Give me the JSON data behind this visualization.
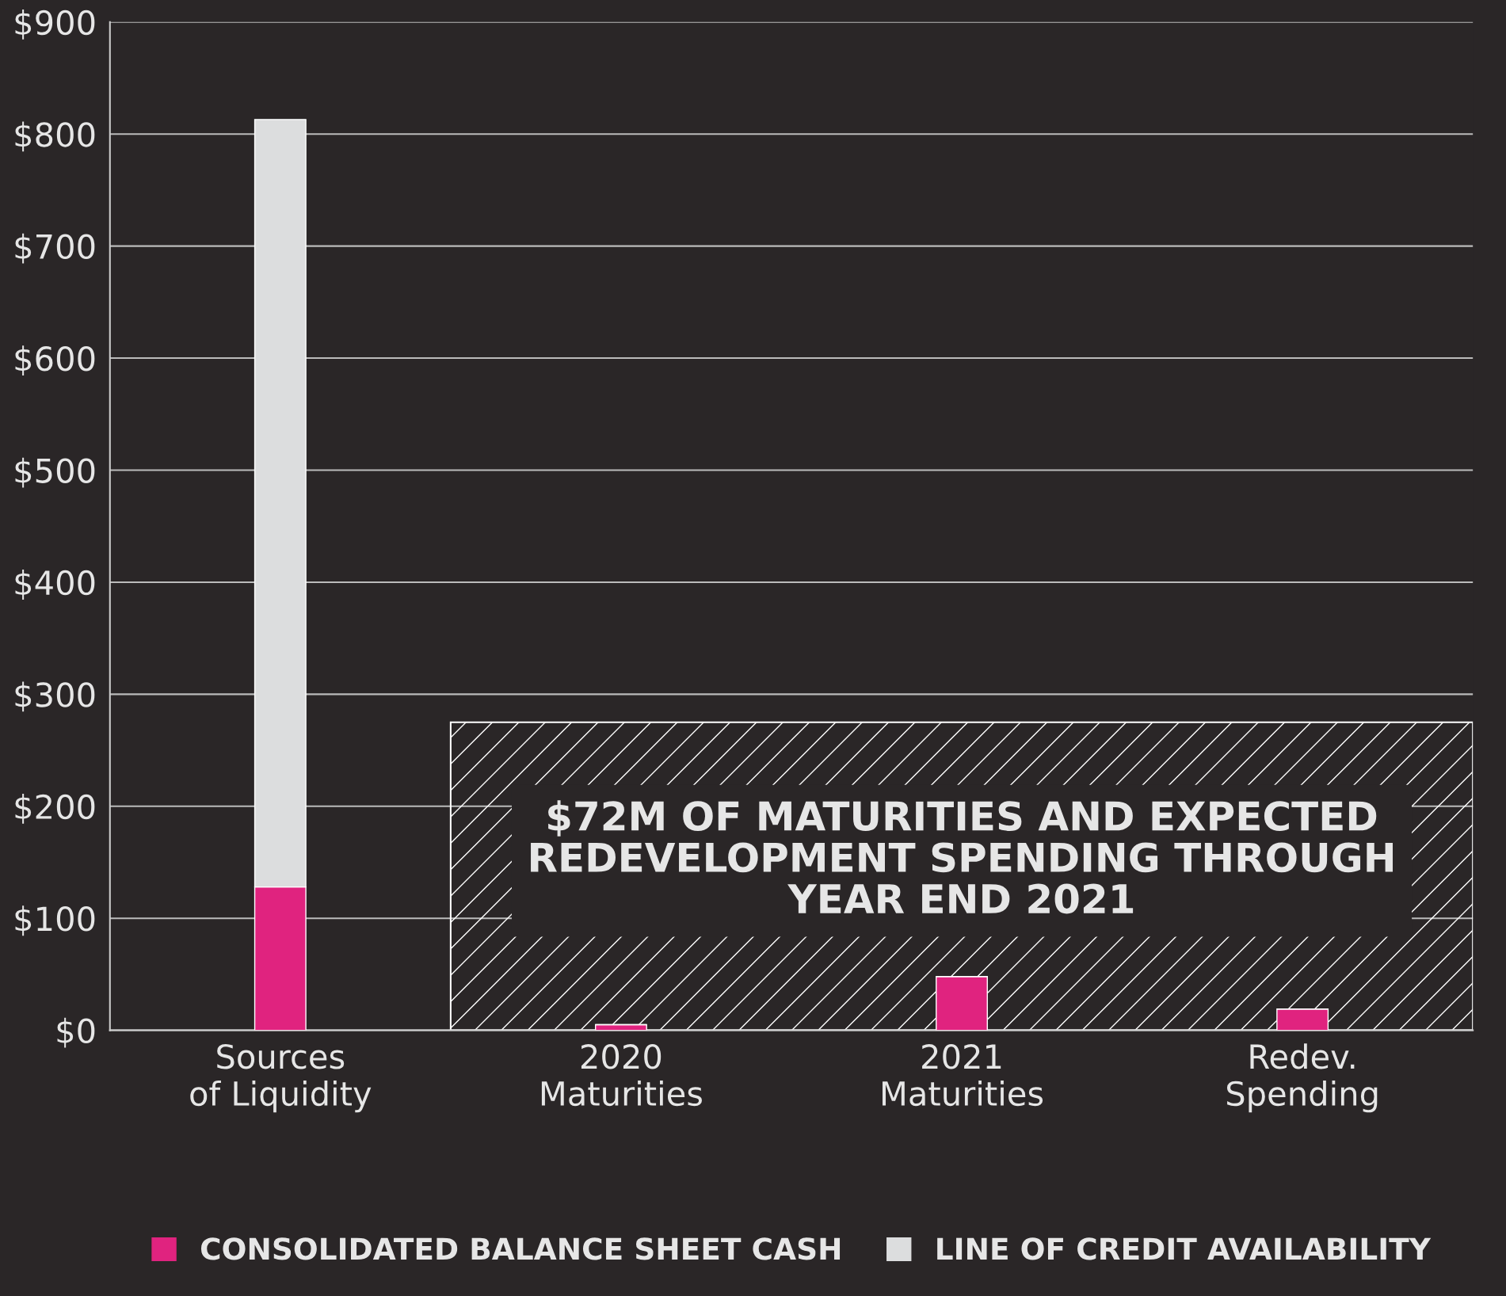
{
  "chart_data": {
    "type": "bar",
    "stacked": true,
    "categories": [
      "Sources\nof Liquidity",
      "2020\nMaturities",
      "2021\nMaturities",
      "Redev.\nSpending"
    ],
    "series": [
      {
        "name": "CONSOLIDATED BALANCE SHEET CASH",
        "color": "#e0237f",
        "values": [
          128,
          5,
          48,
          19
        ]
      },
      {
        "name": "LINE OF CREDIT AVAILABILITY",
        "color": "#dcddde",
        "values": [
          685,
          null,
          null,
          null
        ]
      }
    ],
    "ylim": [
      0,
      900
    ],
    "yticks": [
      {
        "value": 0,
        "label": "$0"
      },
      {
        "value": 100,
        "label": "$100"
      },
      {
        "value": 200,
        "label": "$200"
      },
      {
        "value": 300,
        "label": "$300"
      },
      {
        "value": 400,
        "label": "$400"
      },
      {
        "value": 500,
        "label": "$500"
      },
      {
        "value": 600,
        "label": "$600"
      },
      {
        "value": 700,
        "label": "$700"
      },
      {
        "value": 800,
        "label": "$800"
      },
      {
        "value": 900,
        "label": "$900"
      }
    ],
    "grid": "y",
    "legend": "bottom",
    "bands": [
      {
        "axis": "y",
        "from": 0,
        "to": 275,
        "label": "$72M OF MATURITIES AND EXPECTED\nREDEVELOPMENT SPENDING THROUGH\nYEAR END 2021",
        "color": "#ffffff"
      }
    ]
  }
}
